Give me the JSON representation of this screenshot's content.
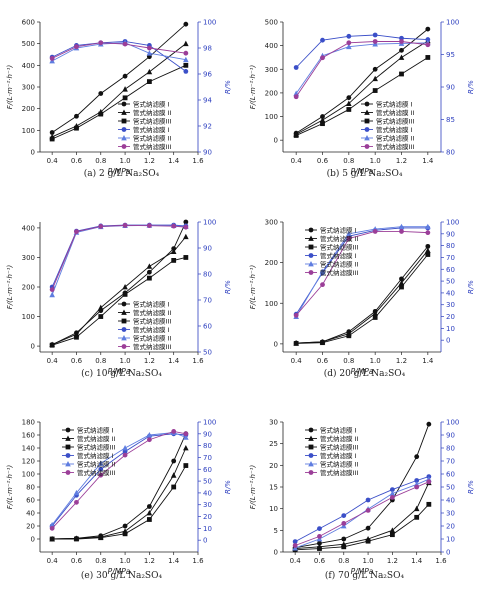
{
  "chart_data": [
    {
      "type": "line",
      "caption": "(a) 2 g/L Na₂SO₄",
      "xlabel": "P/MPa",
      "ylabel": "F/(L·m⁻²·h⁻¹)",
      "y2label": "R/%",
      "xlim": [
        0.3,
        1.6
      ],
      "ylim": [
        0,
        600
      ],
      "y2lim": [
        90,
        100
      ],
      "xticks": [
        "0.4",
        "0.6",
        "0.8",
        "1.0",
        "1.2",
        "1.4",
        "1.6"
      ],
      "yticks": [
        "0",
        "100",
        "200",
        "300",
        "400",
        "500",
        "600"
      ],
      "y2ticks": [
        "90",
        "92",
        "94",
        "96",
        "98",
        "100"
      ],
      "legend_position": "center-right",
      "x": [
        0.4,
        0.6,
        0.8,
        1.0,
        1.2,
        1.5
      ],
      "series": [
        {
          "name": "管式纳滤膜 I",
          "axis": "left",
          "marker": "circle",
          "color": "#111111",
          "values": [
            90,
            165,
            270,
            350,
            440,
            590
          ]
        },
        {
          "name": "管式纳滤膜 II",
          "axis": "left",
          "marker": "triangle",
          "color": "#111111",
          "values": [
            70,
            120,
            185,
            290,
            370,
            500
          ]
        },
        {
          "name": "管式纳滤膜III",
          "axis": "left",
          "marker": "square",
          "color": "#111111",
          "values": [
            60,
            110,
            175,
            250,
            325,
            400
          ]
        },
        {
          "name": "管式纳滤膜 I",
          "axis": "right",
          "marker": "circle",
          "color": "#3b4fc8",
          "values": [
            97.3,
            98.2,
            98.4,
            98.5,
            98.2,
            96.2
          ]
        },
        {
          "name": "管式纳滤膜 II",
          "axis": "right",
          "marker": "triangle",
          "color": "#5f7de0",
          "values": [
            97.0,
            98.0,
            98.3,
            98.4,
            97.6,
            97.1
          ]
        },
        {
          "name": "管式纳滤膜III",
          "axis": "right",
          "marker": "circle",
          "color": "#9b3e98",
          "values": [
            97.2,
            98.1,
            98.4,
            98.3,
            98.0,
            97.6
          ]
        }
      ]
    },
    {
      "type": "line",
      "caption": "(b) 5 g/L Na₂SO₄",
      "xlabel": "P/MPa",
      "ylabel": "F/(L·m⁻²·h⁻¹)",
      "y2label": "R/%",
      "xlim": [
        0.3,
        1.5
      ],
      "ylim": [
        -50,
        500
      ],
      "y2lim": [
        80,
        100
      ],
      "xticks": [
        "0.4",
        "0.6",
        "0.8",
        "1.0",
        "1.2",
        "1.4"
      ],
      "yticks": [
        "0",
        "100",
        "200",
        "300",
        "400",
        "500"
      ],
      "y2ticks": [
        "80",
        "85",
        "90",
        "95",
        "100"
      ],
      "legend_position": "center-right",
      "x": [
        0.4,
        0.6,
        0.8,
        1.0,
        1.2,
        1.4
      ],
      "series": [
        {
          "name": "管式纳滤膜 I",
          "axis": "left",
          "marker": "circle",
          "color": "#111111",
          "values": [
            30,
            100,
            180,
            300,
            380,
            470
          ]
        },
        {
          "name": "管式纳滤膜 II",
          "axis": "left",
          "marker": "triangle",
          "color": "#111111",
          "values": [
            25,
            85,
            155,
            260,
            350,
            420
          ]
        },
        {
          "name": "管式纳滤膜III",
          "axis": "left",
          "marker": "square",
          "color": "#111111",
          "values": [
            20,
            70,
            130,
            210,
            280,
            350
          ]
        },
        {
          "name": "管式纳滤膜 I",
          "axis": "right",
          "marker": "circle",
          "color": "#3b4fc8",
          "values": [
            93.0,
            97.2,
            97.8,
            98.0,
            97.5,
            97.3
          ]
        },
        {
          "name": "管式纳滤膜 II",
          "axis": "right",
          "marker": "triangle",
          "color": "#5f7de0",
          "values": [
            89.0,
            94.8,
            96.2,
            96.6,
            96.7,
            96.8
          ]
        },
        {
          "name": "管式纳滤膜III",
          "axis": "right",
          "marker": "circle",
          "color": "#9b3e98",
          "values": [
            88.5,
            94.5,
            96.8,
            97.0,
            97.0,
            96.5
          ]
        }
      ]
    },
    {
      "type": "line",
      "caption": "(c) 10 g/L Na₂SO₄",
      "xlabel": "P/MPa",
      "ylabel": "F/(L·m⁻²·h⁻¹)",
      "y2label": "R/%",
      "xlim": [
        0.3,
        1.6
      ],
      "ylim": [
        -20,
        420
      ],
      "y2lim": [
        50,
        100
      ],
      "xticks": [
        "0.4",
        "0.6",
        "0.8",
        "1.0",
        "1.2",
        "1.4",
        "1.6"
      ],
      "yticks": [
        "0",
        "100",
        "200",
        "300",
        "400"
      ],
      "y2ticks": [
        "50",
        "60",
        "70",
        "80",
        "90",
        "100"
      ],
      "legend_position": "center-right",
      "x": [
        0.4,
        0.6,
        0.8,
        1.0,
        1.2,
        1.4,
        1.5
      ],
      "series": [
        {
          "name": "管式纳滤膜 I",
          "axis": "left",
          "marker": "circle",
          "color": "#111111",
          "values": [
            5,
            45,
            120,
            180,
            250,
            330,
            420
          ]
        },
        {
          "name": "管式纳滤膜 II",
          "axis": "left",
          "marker": "triangle",
          "color": "#111111",
          "values": [
            5,
            40,
            130,
            200,
            270,
            320,
            370
          ]
        },
        {
          "name": "管式纳滤膜III",
          "axis": "left",
          "marker": "square",
          "color": "#111111",
          "values": [
            3,
            30,
            100,
            175,
            230,
            290,
            300
          ]
        },
        {
          "name": "管式纳滤膜 I",
          "axis": "right",
          "marker": "circle",
          "color": "#3b4fc8",
          "values": [
            75,
            96.5,
            98.5,
            98.8,
            98.8,
            98.8,
            98.5
          ]
        },
        {
          "name": "管式纳滤膜 II",
          "axis": "right",
          "marker": "triangle",
          "color": "#5f7de0",
          "values": [
            72,
            96.0,
            98.2,
            98.6,
            98.7,
            98.6,
            98.3
          ]
        },
        {
          "name": "管式纳滤膜III",
          "axis": "right",
          "marker": "circle",
          "color": "#9b3e98",
          "values": [
            74,
            96.3,
            98.3,
            98.7,
            98.6,
            98.4,
            98.0
          ]
        }
      ]
    },
    {
      "type": "line",
      "caption": "(d) 20 g/L Na₂SO₄",
      "xlabel": "P/MPa",
      "ylabel": "F/(L·m⁻²·h⁻¹)",
      "y2label": "R/%",
      "xlim": [
        0.3,
        1.5
      ],
      "ylim": [
        -20,
        300
      ],
      "y2lim": [
        -10,
        100
      ],
      "xticks": [
        "0.4",
        "0.6",
        "0.8",
        "1.0",
        "1.2",
        "1.4"
      ],
      "yticks": [
        "0",
        "100",
        "200",
        "300"
      ],
      "y2ticks": [
        "0",
        "10",
        "20",
        "30",
        "40",
        "50",
        "60",
        "70",
        "80",
        "90",
        "100"
      ],
      "legend_position": "top-left",
      "x": [
        0.4,
        0.6,
        0.8,
        1.0,
        1.2,
        1.4
      ],
      "series": [
        {
          "name": "管式纳滤膜 I",
          "axis": "left",
          "marker": "circle",
          "color": "#111111",
          "values": [
            2,
            5,
            30,
            80,
            160,
            240
          ]
        },
        {
          "name": "管式纳滤膜 II",
          "axis": "left",
          "marker": "triangle",
          "color": "#111111",
          "values": [
            2,
            5,
            25,
            75,
            150,
            230
          ]
        },
        {
          "name": "管式纳滤膜III",
          "axis": "left",
          "marker": "square",
          "color": "#111111",
          "values": [
            1,
            3,
            20,
            65,
            140,
            220
          ]
        },
        {
          "name": "管式纳滤膜 I",
          "axis": "right",
          "marker": "circle",
          "color": "#3b4fc8",
          "values": [
            22,
            57,
            88,
            93,
            95,
            95
          ]
        },
        {
          "name": "管式纳滤膜 II",
          "axis": "right",
          "marker": "triangle",
          "color": "#5f7de0",
          "values": [
            20,
            58,
            90,
            94,
            96,
            96
          ]
        },
        {
          "name": "管式纳滤膜III",
          "axis": "right",
          "marker": "circle",
          "color": "#9b3e98",
          "values": [
            21,
            47,
            86,
            92,
            92,
            91
          ]
        }
      ]
    },
    {
      "type": "line",
      "caption": "(e) 30 g/L Na₂SO₄",
      "xlabel": "P/MPa",
      "ylabel": "F/(L·m⁻²·h⁻¹)",
      "y2label": "R/%",
      "xlim": [
        0.3,
        1.6
      ],
      "ylim": [
        -20,
        180
      ],
      "y2lim": [
        -10,
        100
      ],
      "xticks": [
        "0.4",
        "0.6",
        "0.8",
        "1.0",
        "1.2",
        "1.4",
        "1.6"
      ],
      "yticks": [
        "0",
        "20",
        "40",
        "60",
        "80",
        "100",
        "120",
        "140",
        "160",
        "180"
      ],
      "y2ticks": [
        "0",
        "10",
        "20",
        "30",
        "40",
        "50",
        "60",
        "70",
        "80",
        "90",
        "100"
      ],
      "legend_position": "top-left",
      "x": [
        0.4,
        0.6,
        0.8,
        1.0,
        1.2,
        1.4,
        1.5
      ],
      "series": [
        {
          "name": "管式纳滤膜 I",
          "axis": "left",
          "marker": "circle",
          "color": "#111111",
          "values": [
            0,
            1,
            5,
            20,
            50,
            120,
            162
          ]
        },
        {
          "name": "管式纳滤膜 II",
          "axis": "left",
          "marker": "triangle",
          "color": "#111111",
          "values": [
            0,
            1,
            3,
            12,
            40,
            98,
            140
          ]
        },
        {
          "name": "管式纳滤膜III",
          "axis": "left",
          "marker": "square",
          "color": "#111111",
          "values": [
            0,
            0,
            2,
            8,
            30,
            80,
            113
          ]
        },
        {
          "name": "管式纳滤膜 I",
          "axis": "right",
          "marker": "circle",
          "color": "#3b4fc8",
          "values": [
            12,
            38,
            60,
            75,
            88,
            90,
            89
          ]
        },
        {
          "name": "管式纳滤膜 II",
          "axis": "right",
          "marker": "triangle",
          "color": "#5f7de0",
          "values": [
            13,
            40,
            65,
            78,
            89,
            91,
            87
          ]
        },
        {
          "name": "管式纳滤膜III",
          "axis": "right",
          "marker": "circle",
          "color": "#9b3e98",
          "values": [
            10,
            32,
            55,
            72,
            85,
            92,
            90
          ]
        }
      ]
    },
    {
      "type": "line",
      "caption": "(f) 70 g/L Na₂SO₄",
      "xlabel": "P/MPa",
      "ylabel": "F/(L·m⁻²·h⁻¹)",
      "y2label": "R/%",
      "xlim": [
        0.3,
        1.6
      ],
      "ylim": [
        0,
        30
      ],
      "y2lim": [
        0,
        100
      ],
      "xticks": [
        "0.4",
        "0.6",
        "0.8",
        "1.0",
        "1.2",
        "1.4",
        "1.6"
      ],
      "yticks": [
        "0",
        "5",
        "10",
        "15",
        "20",
        "25",
        "30"
      ],
      "y2ticks": [
        "0",
        "10",
        "20",
        "30",
        "40",
        "50",
        "60",
        "70",
        "80",
        "90",
        "100"
      ],
      "legend_position": "top-left",
      "x": [
        0.4,
        0.6,
        0.8,
        1.0,
        1.2,
        1.4,
        1.5
      ],
      "series": [
        {
          "name": "管式纳滤膜 I",
          "axis": "left",
          "marker": "circle",
          "color": "#111111",
          "values": [
            1,
            2,
            3,
            5.5,
            12,
            22,
            29.5
          ]
        },
        {
          "name": "管式纳滤膜 II",
          "axis": "left",
          "marker": "triangle",
          "color": "#111111",
          "values": [
            0.8,
            1.2,
            1.8,
            3,
            5,
            10,
            16
          ]
        },
        {
          "name": "管式纳滤膜III",
          "axis": "left",
          "marker": "square",
          "color": "#111111",
          "values": [
            0.5,
            0.8,
            1.2,
            2.5,
            4,
            8,
            11
          ]
        },
        {
          "name": "管式纳滤膜 I",
          "axis": "right",
          "marker": "circle",
          "color": "#3b4fc8",
          "values": [
            8,
            18,
            28,
            40,
            48,
            55,
            58
          ]
        },
        {
          "name": "管式纳滤膜 II",
          "axis": "right",
          "marker": "triangle",
          "color": "#5f7de0",
          "values": [
            3,
            10,
            20,
            33,
            45,
            52,
            56
          ]
        },
        {
          "name": "管式纳滤膜III",
          "axis": "right",
          "marker": "circle",
          "color": "#9b3e98",
          "values": [
            5,
            12,
            22,
            32,
            42,
            50,
            54
          ]
        }
      ]
    }
  ]
}
